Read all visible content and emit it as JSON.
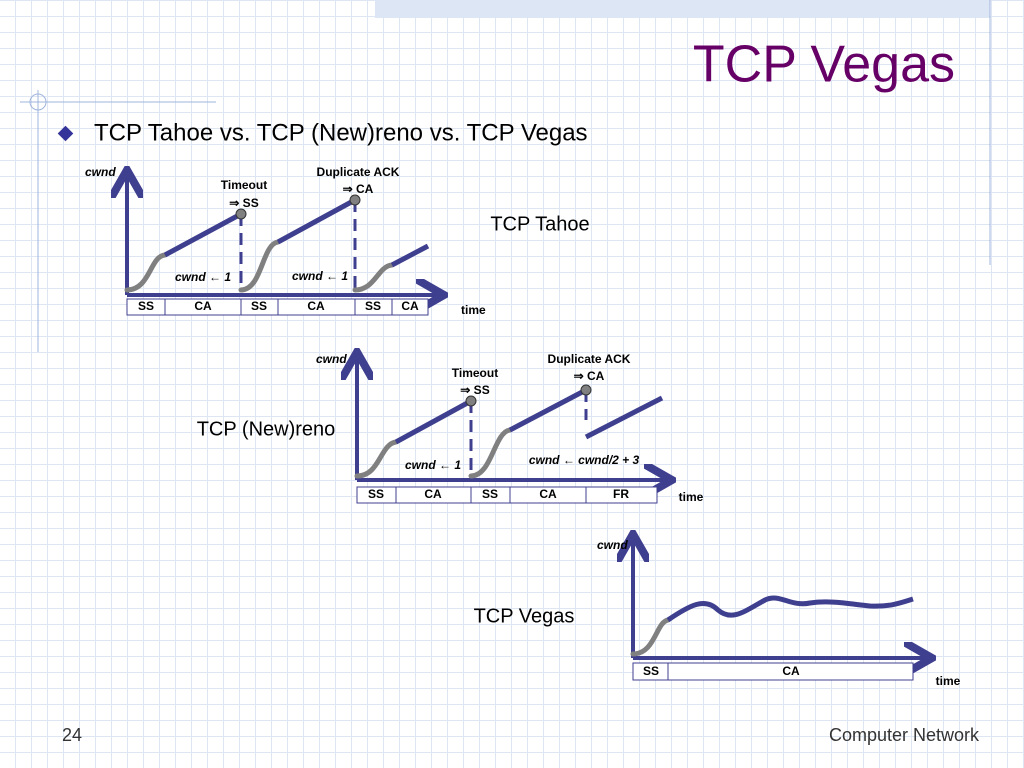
{
  "title": "TCP Vegas",
  "bullet": "TCP Tahoe vs. TCP (New)reno vs. TCP Vegas",
  "diagrams": [
    {
      "name": "TCP Tahoe",
      "y_label": "cwnd",
      "x_label": "time",
      "annotations": [
        "Timeout",
        "⇒ SS",
        "Duplicate ACK",
        "⇒ CA",
        "cwnd ← 1",
        "cwnd ← 1"
      ],
      "phases": [
        "SS",
        "CA",
        "SS",
        "CA",
        "SS",
        "CA"
      ]
    },
    {
      "name": "TCP (New)reno",
      "y_label": "cwnd",
      "x_label": "time",
      "annotations": [
        "Timeout",
        "⇒ SS",
        "Duplicate ACK",
        "⇒ CA",
        "cwnd ← 1",
        "cwnd ← cwnd/2 + 3"
      ],
      "phases": [
        "SS",
        "CA",
        "SS",
        "CA",
        "FR"
      ]
    },
    {
      "name": "TCP Vegas",
      "y_label": "cwnd",
      "x_label": "time",
      "annotations": [],
      "phases": [
        "SS",
        "CA"
      ]
    }
  ],
  "footer": {
    "page": "24",
    "course": "Computer Network"
  }
}
